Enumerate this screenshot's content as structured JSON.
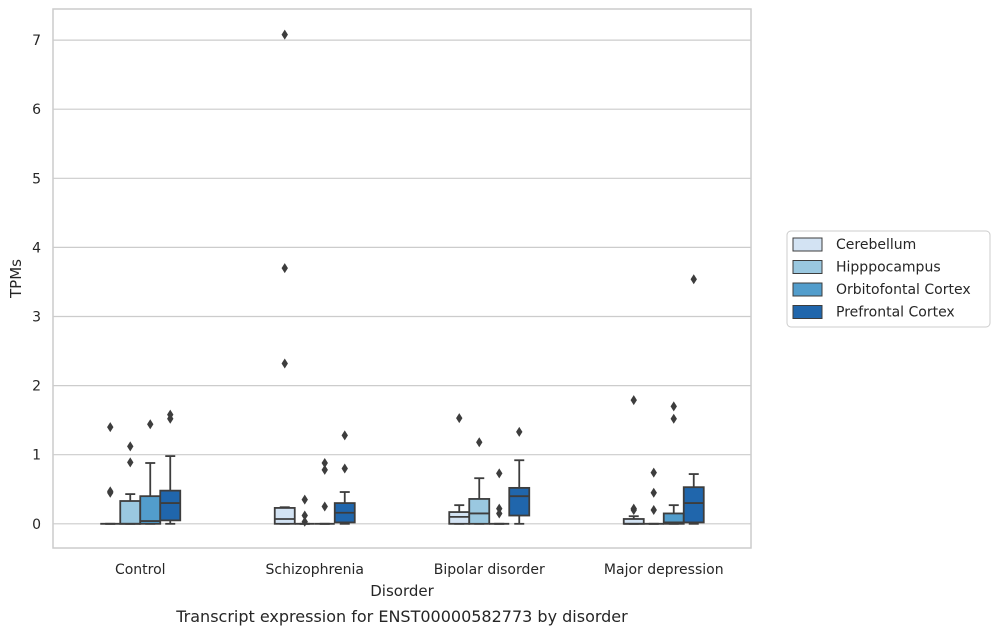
{
  "chart_data": {
    "type": "box",
    "xlabel": "Disorder",
    "ylabel": "TPMs",
    "caption": "Transcript expression for ENST00000582773 by disorder",
    "categories": [
      "Control",
      "Schizophrenia",
      "Bipolar disorder",
      "Major depression"
    ],
    "y_ticks": [
      0,
      1,
      2,
      3,
      4,
      5,
      6,
      7
    ],
    "ylim": [
      -0.35,
      7.45
    ],
    "grid": "horizontal",
    "legend_position": "right",
    "series": [
      {
        "name": "Cerebellum",
        "color": "#d3e3f3",
        "boxes": [
          {
            "category": "Control",
            "whisker_low": 0,
            "q1": 0,
            "median": 0,
            "q3": 0,
            "whisker_high": 0,
            "outliers": [
              0.45,
              0.47,
              1.4
            ]
          },
          {
            "category": "Schizophrenia",
            "whisker_low": 0,
            "q1": 0,
            "median": 0.07,
            "q3": 0.23,
            "whisker_high": 0.24,
            "outliers": [
              2.32,
              3.7,
              7.08
            ]
          },
          {
            "category": "Bipolar disorder",
            "whisker_low": 0,
            "q1": 0,
            "median": 0.1,
            "q3": 0.17,
            "whisker_high": 0.27,
            "outliers": [
              1.53
            ]
          },
          {
            "category": "Major depression",
            "whisker_low": 0,
            "q1": 0,
            "median": 0,
            "q3": 0.07,
            "whisker_high": 0.11,
            "outliers": [
              0.2,
              0.22,
              1.79
            ]
          }
        ]
      },
      {
        "name": "Hipppocampus",
        "color": "#9ac8e0",
        "boxes": [
          {
            "category": "Control",
            "whisker_low": 0,
            "q1": 0,
            "median": 0,
            "q3": 0.33,
            "whisker_high": 0.43,
            "outliers": [
              0.89,
              1.12
            ]
          },
          {
            "category": "Schizophrenia",
            "whisker_low": 0,
            "q1": 0,
            "median": 0,
            "q3": 0,
            "whisker_high": 0,
            "outliers": [
              0.03,
              0.12,
              0.35
            ]
          },
          {
            "category": "Bipolar disorder",
            "whisker_low": 0,
            "q1": 0,
            "median": 0.15,
            "q3": 0.36,
            "whisker_high": 0.66,
            "outliers": [
              1.18
            ]
          },
          {
            "category": "Major depression",
            "whisker_low": 0,
            "q1": 0,
            "median": 0,
            "q3": 0,
            "whisker_high": 0,
            "outliers": [
              0.2,
              0.45,
              0.74
            ]
          }
        ]
      },
      {
        "name": "Orbitofontal Cortex",
        "color": "#529dcc",
        "boxes": [
          {
            "category": "Control",
            "whisker_low": 0,
            "q1": 0,
            "median": 0.04,
            "q3": 0.4,
            "whisker_high": 0.88,
            "outliers": [
              1.44
            ]
          },
          {
            "category": "Schizophrenia",
            "whisker_low": 0,
            "q1": 0,
            "median": 0,
            "q3": 0,
            "whisker_high": 0,
            "outliers": [
              0.25,
              0.78,
              0.88
            ]
          },
          {
            "category": "Bipolar disorder",
            "whisker_low": 0,
            "q1": 0,
            "median": 0,
            "q3": 0,
            "whisker_high": 0,
            "outliers": [
              0.15,
              0.22,
              0.73
            ]
          },
          {
            "category": "Major depression",
            "whisker_low": 0,
            "q1": 0,
            "median": 0.02,
            "q3": 0.15,
            "whisker_high": 0.27,
            "outliers": [
              1.52,
              1.7
            ]
          }
        ]
      },
      {
        "name": "Prefrontal Cortex",
        "color": "#2066ac",
        "boxes": [
          {
            "category": "Control",
            "whisker_low": 0,
            "q1": 0.05,
            "median": 0.3,
            "q3": 0.48,
            "whisker_high": 0.98,
            "outliers": [
              1.52,
              1.58
            ]
          },
          {
            "category": "Schizophrenia",
            "whisker_low": 0,
            "q1": 0.02,
            "median": 0.16,
            "q3": 0.3,
            "whisker_high": 0.46,
            "outliers": [
              0.8,
              1.28
            ]
          },
          {
            "category": "Bipolar disorder",
            "whisker_low": 0,
            "q1": 0.12,
            "median": 0.4,
            "q3": 0.52,
            "whisker_high": 0.92,
            "outliers": [
              1.33
            ]
          },
          {
            "category": "Major depression",
            "whisker_low": 0,
            "q1": 0.02,
            "median": 0.3,
            "q3": 0.53,
            "whisker_high": 0.72,
            "outliers": [
              3.54
            ]
          }
        ]
      }
    ]
  }
}
